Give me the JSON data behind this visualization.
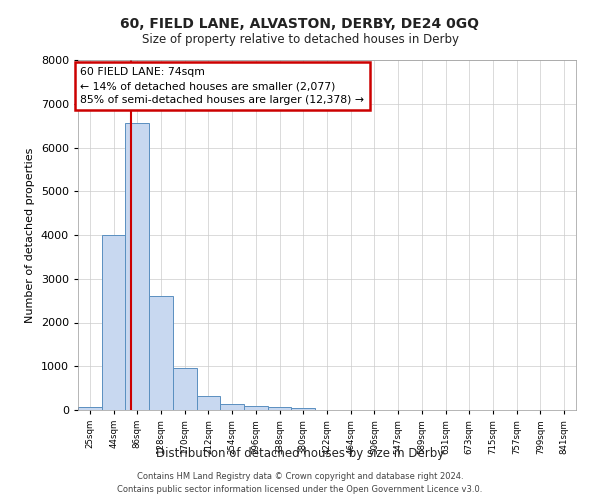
{
  "title": "60, FIELD LANE, ALVASTON, DERBY, DE24 0GQ",
  "subtitle": "Size of property relative to detached houses in Derby",
  "xlabel": "Distribution of detached houses by size in Derby",
  "ylabel": "Number of detached properties",
  "bin_labels": [
    "25sqm",
    "44sqm",
    "86sqm",
    "128sqm",
    "170sqm",
    "212sqm",
    "254sqm",
    "296sqm",
    "338sqm",
    "380sqm",
    "422sqm",
    "464sqm",
    "506sqm",
    "547sqm",
    "589sqm",
    "631sqm",
    "673sqm",
    "715sqm",
    "757sqm",
    "799sqm",
    "841sqm"
  ],
  "bar_values": [
    75,
    4000,
    6550,
    2600,
    960,
    310,
    130,
    100,
    80,
    50,
    0,
    0,
    0,
    0,
    0,
    0,
    0,
    0,
    0,
    0,
    0
  ],
  "bar_color": "#c8d8f0",
  "bar_edge_color": "#5a8fc0",
  "annotation_box_text": "60 FIELD LANE: 74sqm\n← 14% of detached houses are smaller (2,077)\n85% of semi-detached houses are larger (12,378) →",
  "annotation_box_color": "#ffffff",
  "annotation_box_edge_color": "#cc0000",
  "vline_color": "#cc0000",
  "vline_x": 1.72,
  "ylim": [
    0,
    8000
  ],
  "yticks": [
    0,
    1000,
    2000,
    3000,
    4000,
    5000,
    6000,
    7000,
    8000
  ],
  "grid_color": "#cccccc",
  "background_color": "#ffffff",
  "axes_background_color": "#ffffff",
  "footer_line1": "Contains HM Land Registry data © Crown copyright and database right 2024.",
  "footer_line2": "Contains public sector information licensed under the Open Government Licence v3.0."
}
